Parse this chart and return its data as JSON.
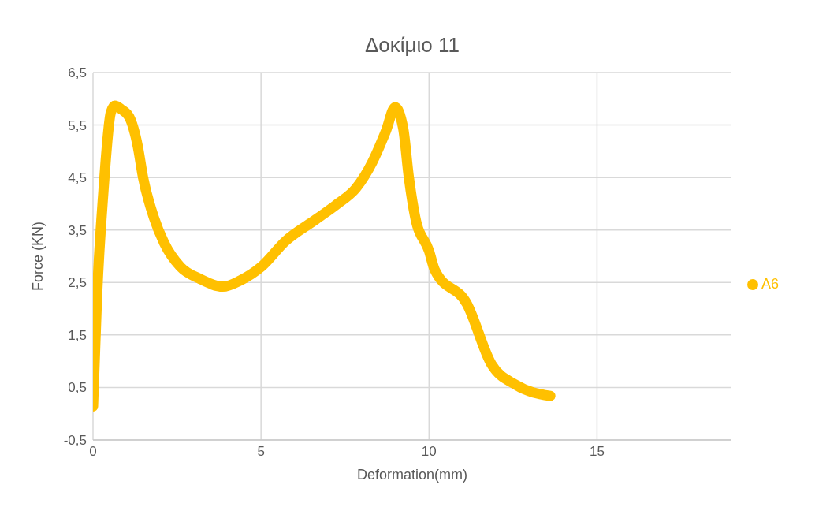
{
  "chart_data": {
    "type": "line",
    "title": "Δοκίμιο 11",
    "xlabel": "Deformation(mm)",
    "ylabel": "Force (KN)",
    "xlim": [
      0,
      19
    ],
    "xticks": [
      0,
      5,
      10,
      15
    ],
    "ylim": [
      -0.5,
      6.5
    ],
    "yticks": [
      {
        "value": -0.5,
        "label": "-0,5"
      },
      {
        "value": 0.5,
        "label": "0,5"
      },
      {
        "value": 1.5,
        "label": "1,5"
      },
      {
        "value": 2.5,
        "label": "2,5"
      },
      {
        "value": 3.5,
        "label": "3,5"
      },
      {
        "value": 4.5,
        "label": "4,5"
      },
      {
        "value": 5.5,
        "label": "5,5"
      },
      {
        "value": 6.5,
        "label": "6,5"
      }
    ],
    "grid": true,
    "legend": "right",
    "marker": "none",
    "line_style": "solid",
    "series": [
      {
        "name": "A6",
        "color": "#ffc000",
        "x": [
          0,
          0.12,
          0.31,
          0.53,
          0.65,
          0.84,
          1.08,
          1.33,
          1.49,
          1.81,
          2.12,
          2.6,
          3.18,
          3.86,
          4.39,
          5.01,
          5.73,
          6.63,
          7.28,
          7.83,
          8.31,
          8.72,
          8.99,
          9.23,
          9.4,
          9.59,
          10.0,
          10.17,
          11.13,
          11.86,
          12.58,
          13.61
        ],
        "values": [
          0.14,
          2.24,
          4.24,
          5.74,
          5.87,
          5.8,
          5.65,
          5.1,
          4.5,
          3.74,
          3.25,
          2.8,
          2.57,
          2.42,
          2.54,
          2.8,
          3.29,
          3.7,
          4.0,
          4.3,
          4.79,
          5.39,
          5.84,
          5.44,
          4.5,
          3.74,
          3.1,
          2.74,
          2.09,
          0.94,
          0.55,
          0.34
        ]
      }
    ]
  }
}
